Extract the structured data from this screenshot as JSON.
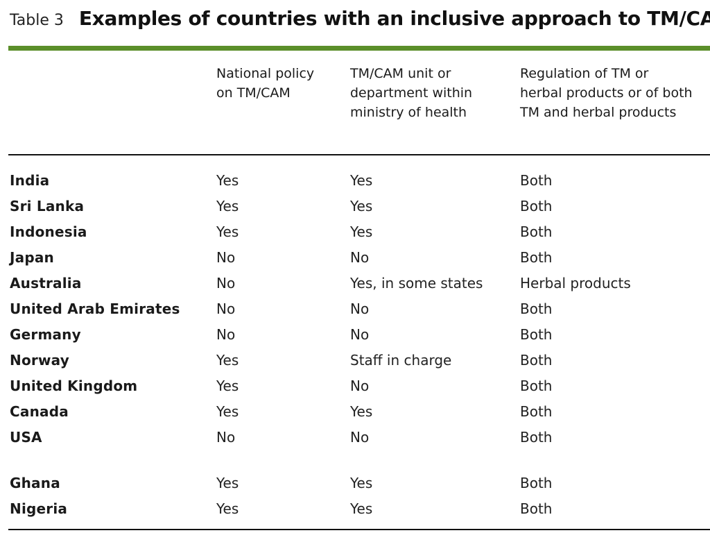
{
  "table": {
    "number": "Table 3",
    "title": "Examples of countries with an inclusive approach to TM/CAM",
    "columns": {
      "country": "",
      "policy": "National policy\non TM/CAM",
      "unit": "TM/CAM unit or\ndepartment within\nministry of health",
      "regulation": "Regulation of TM or\nherbal products or of both\nTM and herbal products"
    },
    "rows": [
      {
        "country": "India",
        "policy": "Yes",
        "unit": "Yes",
        "regulation": "Both"
      },
      {
        "country": "Sri Lanka",
        "policy": "Yes",
        "unit": "Yes",
        "regulation": "Both"
      },
      {
        "country": "Indonesia",
        "policy": "Yes",
        "unit": "Yes",
        "regulation": "Both"
      },
      {
        "country": "Japan",
        "policy": "No",
        "unit": "No",
        "regulation": "Both"
      },
      {
        "country": "Australia",
        "policy": "No",
        "unit": "Yes, in some states",
        "regulation": "Herbal products"
      },
      {
        "country": "United Arab Emirates",
        "policy": "No",
        "unit": "No",
        "regulation": "Both"
      },
      {
        "country": "Germany",
        "policy": "No",
        "unit": "No",
        "regulation": "Both"
      },
      {
        "country": "Norway",
        "policy": "Yes",
        "unit": "Staff in charge",
        "regulation": "Both"
      },
      {
        "country": "United Kingdom",
        "policy": "Yes",
        "unit": "No",
        "regulation": "Both"
      },
      {
        "country": "Canada",
        "policy": "Yes",
        "unit": "Yes",
        "regulation": "Both"
      },
      {
        "country": "USA",
        "policy": "No",
        "unit": "No",
        "regulation": "Both"
      },
      {
        "country": "Ghana",
        "policy": "Yes",
        "unit": "Yes",
        "regulation": "Both"
      },
      {
        "country": "Nigeria",
        "policy": "Yes",
        "unit": "Yes",
        "regulation": "Both"
      }
    ]
  },
  "colors": {
    "accent_rule": "#5b8f2a",
    "text": "#1a1a1a"
  }
}
